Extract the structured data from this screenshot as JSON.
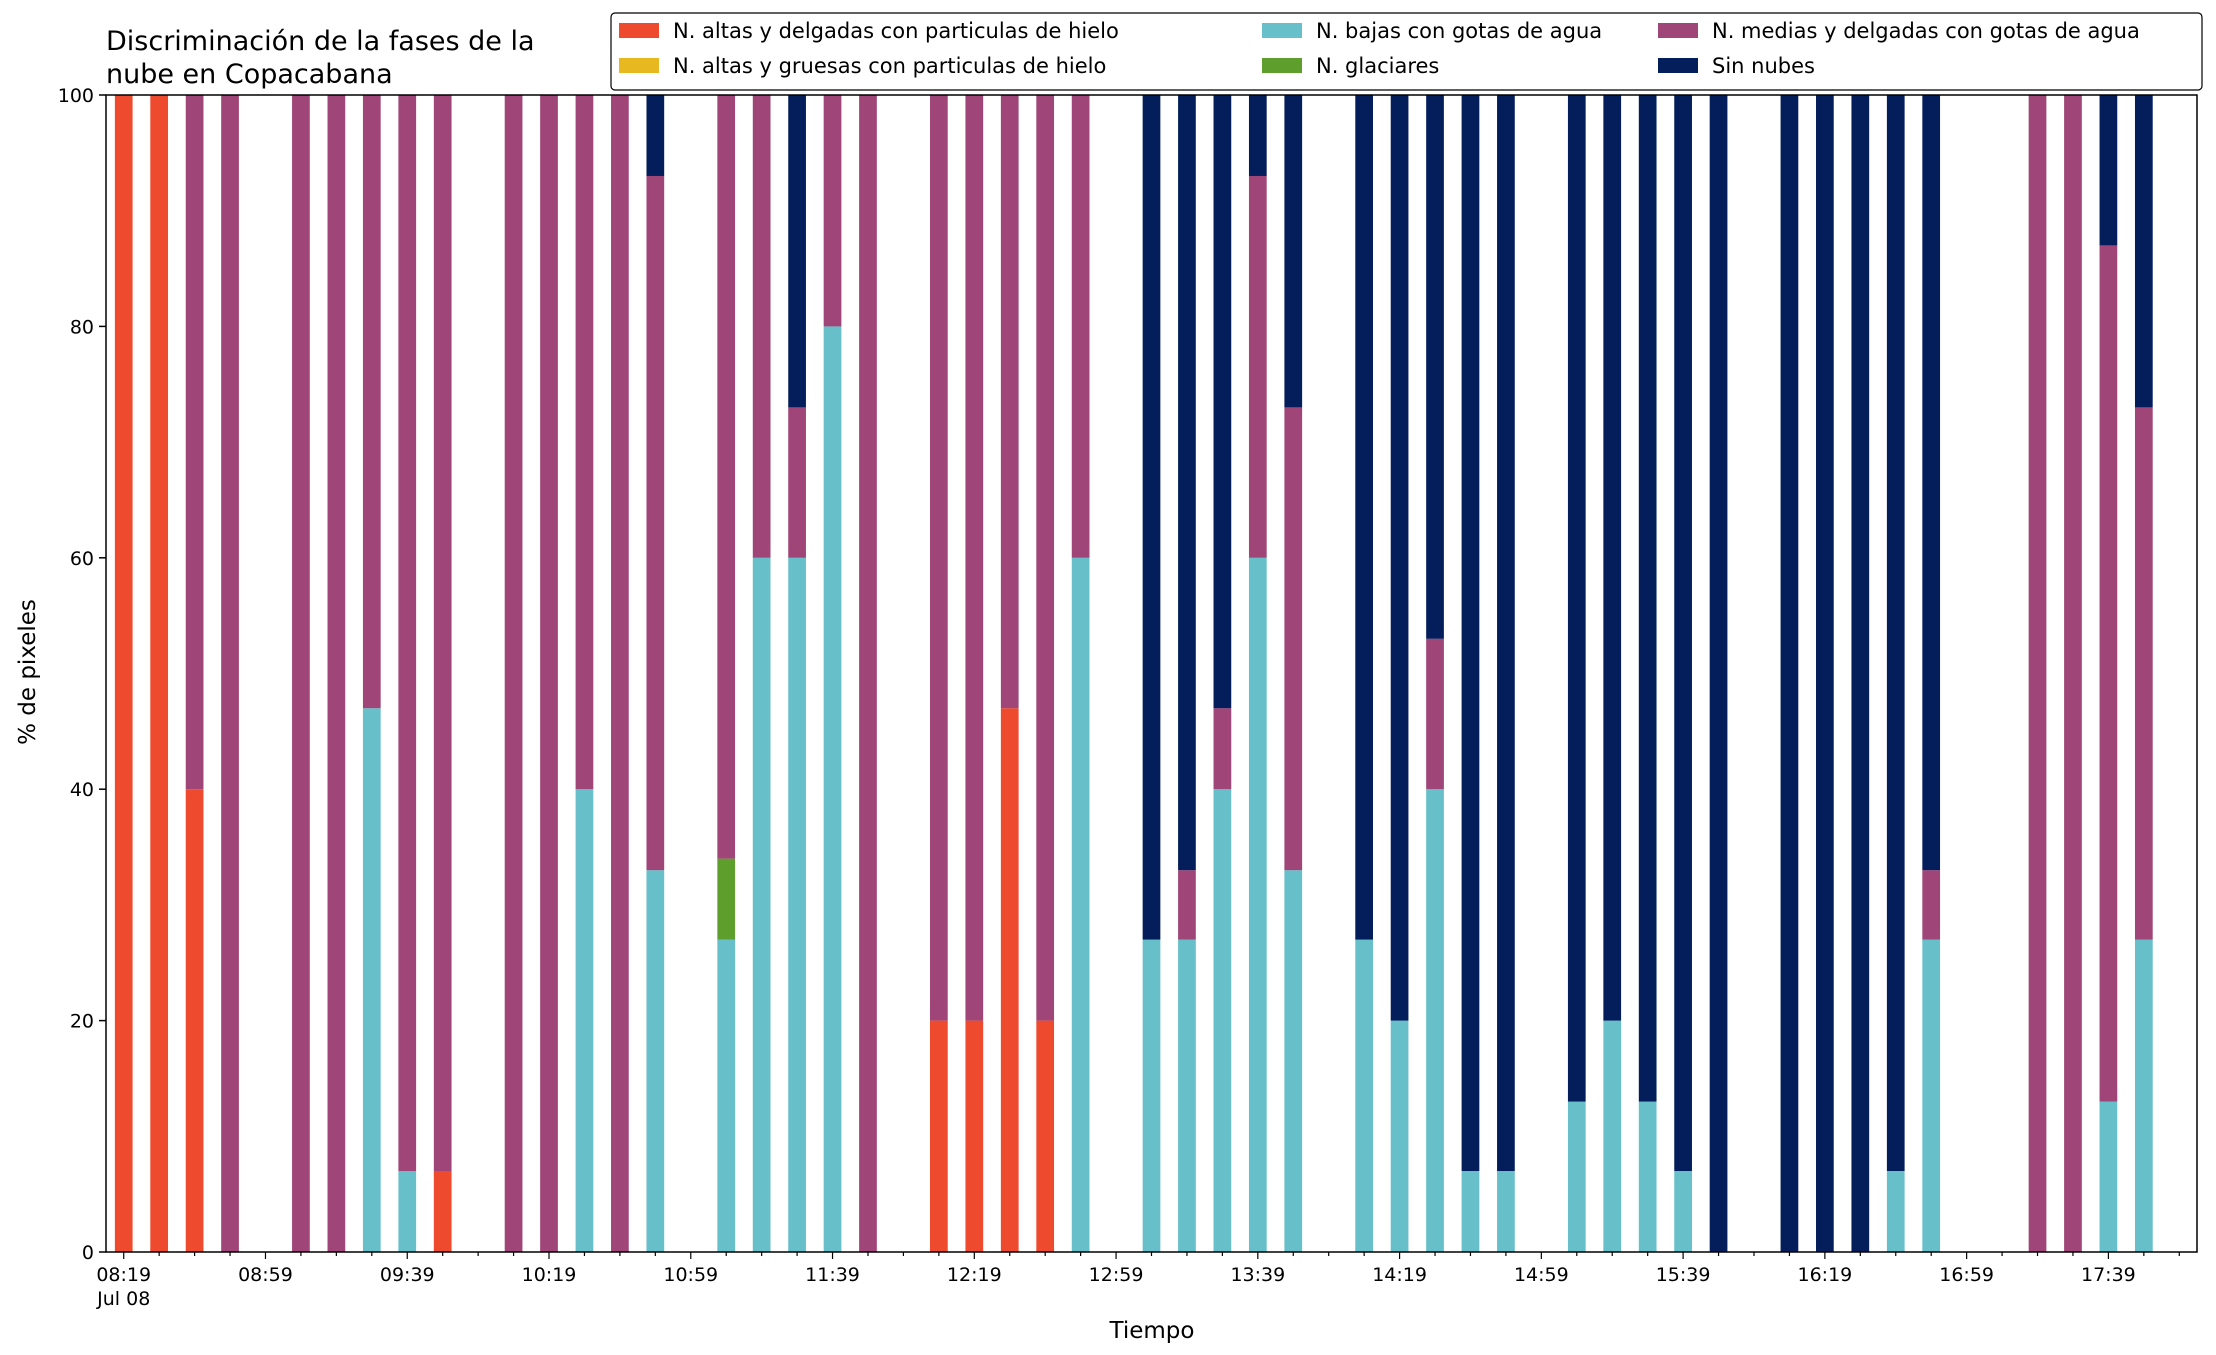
{
  "chart_data": {
    "type": "bar",
    "stacked": true,
    "title": [
      "Discriminación de la fases de la",
      "nube en Copacabana"
    ],
    "xlabel": "Tiempo",
    "ylabel": "% de pixeles",
    "ylim": [
      0,
      100
    ],
    "yticks": [
      0,
      20,
      40,
      60,
      80,
      100
    ],
    "grid": false,
    "legend_position": "top-right",
    "x_slot_count": 59,
    "x_tick_labels": [
      {
        "slot": 0,
        "label": "08:19",
        "sublabel": "Jul 08"
      },
      {
        "slot": 4,
        "label": "08:59"
      },
      {
        "slot": 8,
        "label": "09:39"
      },
      {
        "slot": 12,
        "label": "10:19"
      },
      {
        "slot": 16,
        "label": "10:59"
      },
      {
        "slot": 20,
        "label": "11:39"
      },
      {
        "slot": 24,
        "label": "12:19"
      },
      {
        "slot": 28,
        "label": "12:59"
      },
      {
        "slot": 32,
        "label": "13:39"
      },
      {
        "slot": 36,
        "label": "14:19"
      },
      {
        "slot": 40,
        "label": "14:59"
      },
      {
        "slot": 44,
        "label": "15:39"
      },
      {
        "slot": 48,
        "label": "16:19"
      },
      {
        "slot": 52,
        "label": "16:59"
      },
      {
        "slot": 56,
        "label": "17:39"
      }
    ],
    "series": [
      {
        "name": "N. altas y delgadas con particulas de hielo",
        "color": "#ee4a2d",
        "values": [
          100,
          100,
          40,
          0,
          0,
          0,
          0,
          0,
          0,
          7,
          0,
          0,
          0,
          0,
          0,
          0,
          0,
          0,
          0,
          0,
          0,
          0,
          0,
          20,
          20,
          47,
          20,
          0,
          0,
          0,
          0,
          0,
          0,
          0,
          0,
          0,
          0,
          0,
          0,
          0,
          0,
          0,
          0,
          0,
          0,
          0,
          0,
          0,
          0,
          0,
          0,
          0,
          0,
          0,
          0,
          0,
          0,
          0,
          0
        ]
      },
      {
        "name": "N. altas y gruesas con particulas de hielo",
        "color": "#e7b81f",
        "values": [
          0,
          0,
          0,
          0,
          0,
          0,
          0,
          0,
          0,
          0,
          0,
          0,
          0,
          0,
          0,
          0,
          0,
          0,
          0,
          0,
          0,
          0,
          0,
          0,
          0,
          0,
          0,
          0,
          0,
          0,
          0,
          0,
          0,
          0,
          0,
          0,
          0,
          0,
          0,
          0,
          0,
          0,
          0,
          0,
          0,
          0,
          0,
          0,
          0,
          0,
          0,
          0,
          0,
          0,
          0,
          0,
          0,
          0,
          0
        ]
      },
      {
        "name": "N. bajas con gotas de agua",
        "color": "#66bfc9",
        "values": [
          0,
          0,
          0,
          0,
          0,
          0,
          0,
          47,
          7,
          0,
          0,
          0,
          0,
          40,
          0,
          33,
          0,
          27,
          60,
          60,
          80,
          0,
          0,
          0,
          0,
          0,
          0,
          60,
          0,
          27,
          27,
          40,
          60,
          33,
          0,
          27,
          20,
          40,
          7,
          7,
          0,
          13,
          20,
          13,
          7,
          0,
          0,
          0,
          0,
          0,
          7,
          27,
          0,
          0,
          0,
          0,
          13,
          27,
          0
        ]
      },
      {
        "name": "N. glaciares",
        "color": "#5e9e2d",
        "values": [
          0,
          0,
          0,
          0,
          0,
          0,
          0,
          0,
          0,
          0,
          0,
          0,
          0,
          0,
          0,
          0,
          0,
          7,
          0,
          0,
          0,
          0,
          0,
          0,
          0,
          0,
          0,
          0,
          0,
          0,
          0,
          0,
          0,
          0,
          0,
          0,
          0,
          0,
          0,
          0,
          0,
          0,
          0,
          0,
          0,
          0,
          0,
          0,
          0,
          0,
          0,
          0,
          0,
          0,
          0,
          0,
          0,
          0,
          0
        ]
      },
      {
        "name": "N. medias y delgadas con gotas de agua",
        "color": "#a04578",
        "values": [
          0,
          0,
          60,
          100,
          0,
          100,
          100,
          53,
          93,
          93,
          0,
          100,
          100,
          60,
          100,
          60,
          0,
          66,
          40,
          13,
          20,
          100,
          0,
          80,
          80,
          53,
          80,
          40,
          0,
          0,
          6,
          7,
          33,
          40,
          0,
          0,
          0,
          13,
          0,
          0,
          0,
          0,
          0,
          0,
          0,
          0,
          0,
          0,
          0,
          0,
          0,
          6,
          0,
          0,
          100,
          100,
          74,
          46,
          0
        ]
      },
      {
        "name": "Sin nubes",
        "color": "#041e5c",
        "values": [
          0,
          0,
          0,
          0,
          0,
          0,
          0,
          0,
          0,
          0,
          0,
          0,
          0,
          0,
          0,
          7,
          0,
          0,
          0,
          27,
          0,
          0,
          0,
          0,
          0,
          0,
          0,
          0,
          0,
          73,
          67,
          53,
          7,
          27,
          0,
          73,
          80,
          47,
          93,
          93,
          0,
          87,
          80,
          87,
          93,
          100,
          0,
          100,
          100,
          100,
          93,
          67,
          0,
          0,
          0,
          0,
          13,
          27,
          0
        ]
      }
    ]
  }
}
